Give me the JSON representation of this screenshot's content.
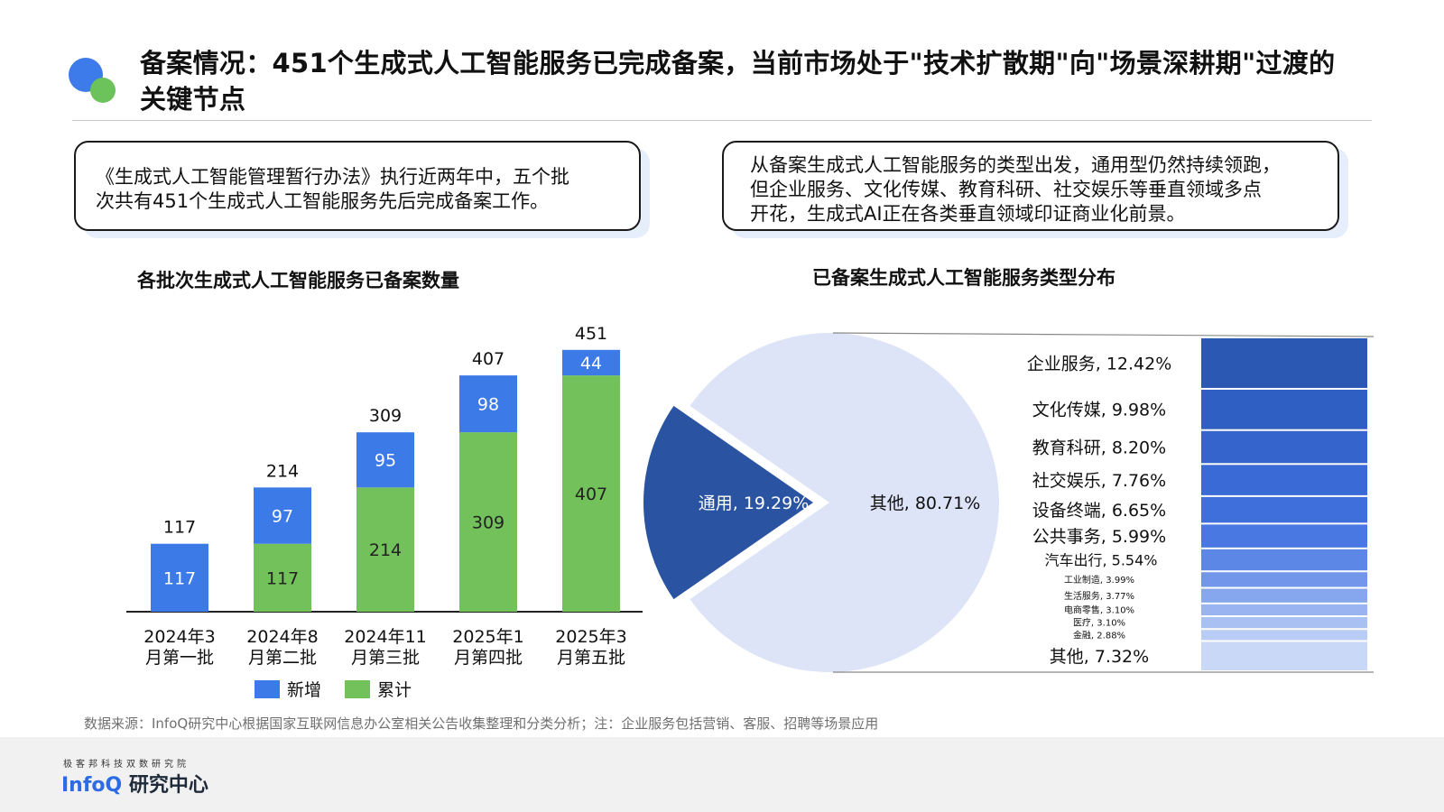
{
  "header": {
    "title": "备案情况：451个生成式人工智能服务已完成备案，当前市场处于\"技术扩散期\"向\"场景深耕期\"过渡的关键节点"
  },
  "callouts": {
    "left": {
      "lines": [
        "《生成式人工智能管理暂行办法》执行近两年中，五个批",
        "次共有451个生成式人工智能服务先后完成备案工作。"
      ]
    },
    "right": {
      "lines": [
        "从备案生成式人工智能服务的类型出发，通用型仍然持续领跑，",
        "但企业服务、文化传媒、教育科研、社交娱乐等垂直领域多点",
        "开花，生成式AI正在各类垂直领域印证商业化前景。"
      ]
    }
  },
  "chart_data": [
    {
      "type": "bar",
      "stacked": true,
      "title": "各批次生成式人工智能服务已备案数量",
      "categories": [
        [
          "2024年3",
          "月第一批"
        ],
        [
          "2024年8",
          "月第二批"
        ],
        [
          "2024年11",
          "月第三批"
        ],
        [
          "2025年1",
          "月第四批"
        ],
        [
          "2025年3",
          "月第五批"
        ]
      ],
      "series": [
        {
          "name": "累计",
          "color": "#72c15a",
          "values": [
            0,
            117,
            214,
            309,
            407
          ]
        },
        {
          "name": "新增",
          "color": "#3c7ae8",
          "values": [
            117,
            97,
            95,
            98,
            44
          ]
        }
      ],
      "totals": [
        117,
        214,
        309,
        407,
        451
      ],
      "ylim": [
        0,
        460
      ],
      "grid": false,
      "legend": "bottom"
    },
    {
      "type": "pie",
      "title": "已备案生成式人工智能服务类型分布",
      "slices": [
        {
          "label": "通用",
          "value": 19.29,
          "display": "通用, 19.29%",
          "color": "#2a54a1",
          "text_color": "#ffffff"
        },
        {
          "label": "其他",
          "value": 80.71,
          "display": "其他, 80.71%",
          "color": "#dde4f8",
          "text_color": "#111111"
        }
      ],
      "breakdown": {
        "type": "stacked-bar",
        "items": [
          {
            "label": "企业服务",
            "value": 12.42,
            "display": "企业服务, 12.42%",
            "color": "#2b58b3",
            "size": "large"
          },
          {
            "label": "文化传媒",
            "value": 9.98,
            "display": "文化传媒, 9.98%",
            "color": "#2f5fc2",
            "size": "large"
          },
          {
            "label": "教育科研",
            "value": 8.2,
            "display": "教育科研, 8.20%",
            "color": "#3464cc",
            "size": "large"
          },
          {
            "label": "社交娱乐",
            "value": 7.76,
            "display": "社交娱乐, 7.76%",
            "color": "#3a6ad5",
            "size": "large"
          },
          {
            "label": "设备终端",
            "value": 6.65,
            "display": "设备终端, 6.65%",
            "color": "#3f6fdb",
            "size": "large"
          },
          {
            "label": "公共事务",
            "value": 5.99,
            "display": "公共事务, 5.99%",
            "color": "#4a78e2",
            "size": "large"
          },
          {
            "label": "汽车出行",
            "value": 5.54,
            "display": "汽车出行, 5.54%",
            "color": "#5c87e6",
            "size": "medium"
          },
          {
            "label": "工业制造",
            "value": 3.99,
            "display": "工业制造, 3.99%",
            "color": "#7297ea",
            "size": "small"
          },
          {
            "label": "生活服务",
            "value": 3.77,
            "display": "生活服务, 3.77%",
            "color": "#86a6ee",
            "size": "small"
          },
          {
            "label": "电商零售",
            "value": 3.1,
            "display": "电商零售, 3.10%",
            "color": "#99b4f1",
            "size": "small"
          },
          {
            "label": "医疗",
            "value": 3.1,
            "display": "医疗, 3.10%",
            "color": "#a9c0f3",
            "size": "small"
          },
          {
            "label": "金融",
            "value": 2.88,
            "display": "金融, 2.88%",
            "color": "#b9ccf5",
            "size": "small"
          },
          {
            "label": "其他",
            "value": 7.32,
            "display": "其他, 7.32%",
            "color": "#cad8f7",
            "size": "large"
          }
        ]
      }
    }
  ],
  "source_note": "数据来源：InfoQ研究中心根据国家互联网信息办公室相关公告收集整理和分类分析；注：企业服务包括营销、客服、招聘等场景应用",
  "footer": {
    "org": "极客邦科技双数研究院",
    "brand_infoq": "InfoQ",
    "brand_name": "研究中心"
  }
}
